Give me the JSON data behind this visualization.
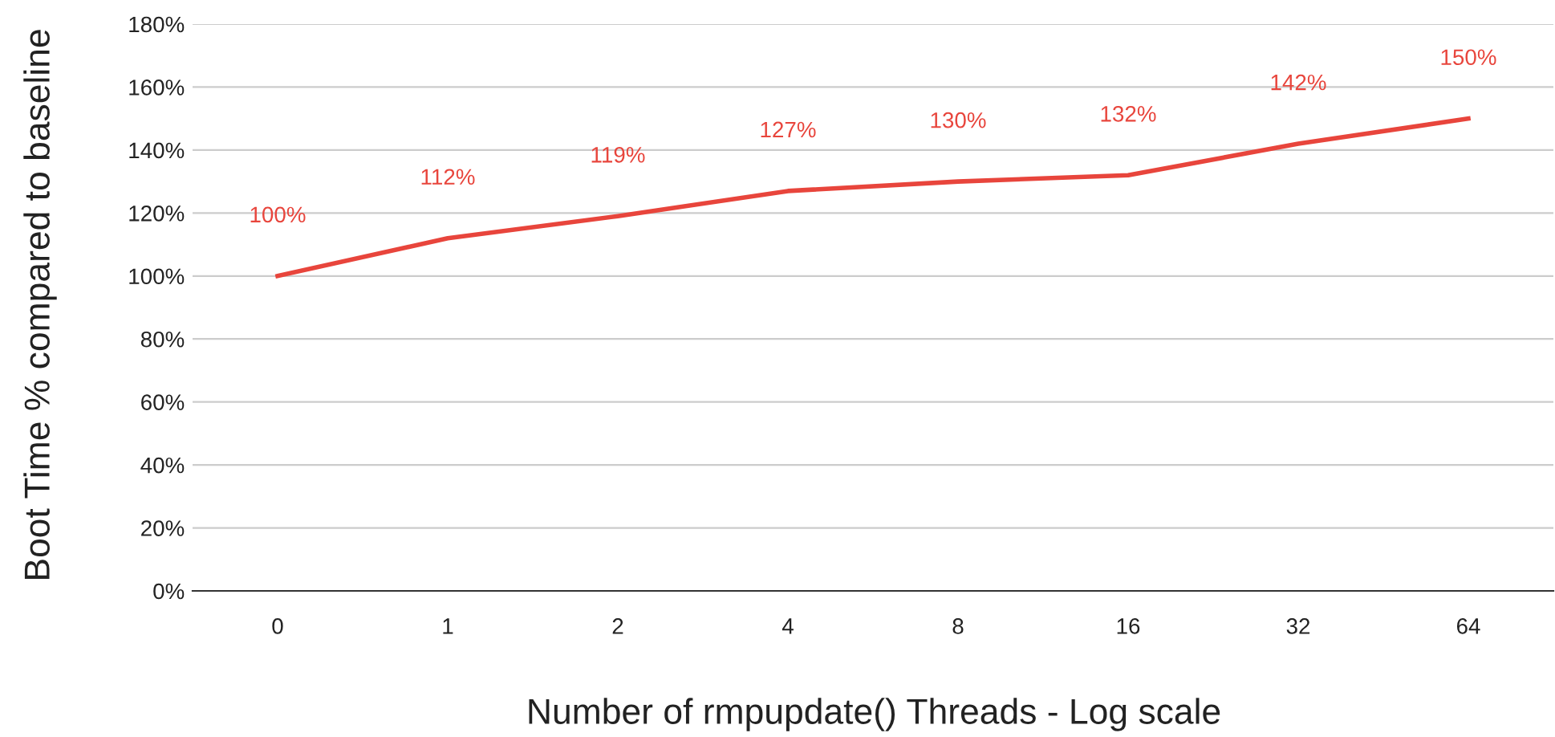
{
  "chart_data": {
    "type": "line",
    "xlabel": "Number of rmpupdate() Threads - Log scale",
    "ylabel": "Boot Time % compared to baseline",
    "categories": [
      "0",
      "1",
      "2",
      "4",
      "8",
      "16",
      "32",
      "64"
    ],
    "series": [
      {
        "color": "#e8453c",
        "values": [
          100,
          112,
          119,
          127,
          130,
          132,
          142,
          150
        ],
        "value_labels": [
          "100%",
          "112%",
          "119%",
          "127%",
          "130%",
          "132%",
          "142%",
          "150%"
        ]
      }
    ],
    "ylim": [
      0,
      180
    ],
    "yticks": [
      {
        "value": 0,
        "label": "0%"
      },
      {
        "value": 20,
        "label": "20%"
      },
      {
        "value": 40,
        "label": "40%"
      },
      {
        "value": 60,
        "label": "60%"
      },
      {
        "value": 80,
        "label": "80%"
      },
      {
        "value": 100,
        "label": "100%"
      },
      {
        "value": 120,
        "label": "120%"
      },
      {
        "value": 140,
        "label": "140%"
      },
      {
        "value": 160,
        "label": "160%"
      },
      {
        "value": 180,
        "label": "180%"
      }
    ],
    "grid": "y",
    "marker": "none",
    "line_style": "solid",
    "legend": false
  }
}
